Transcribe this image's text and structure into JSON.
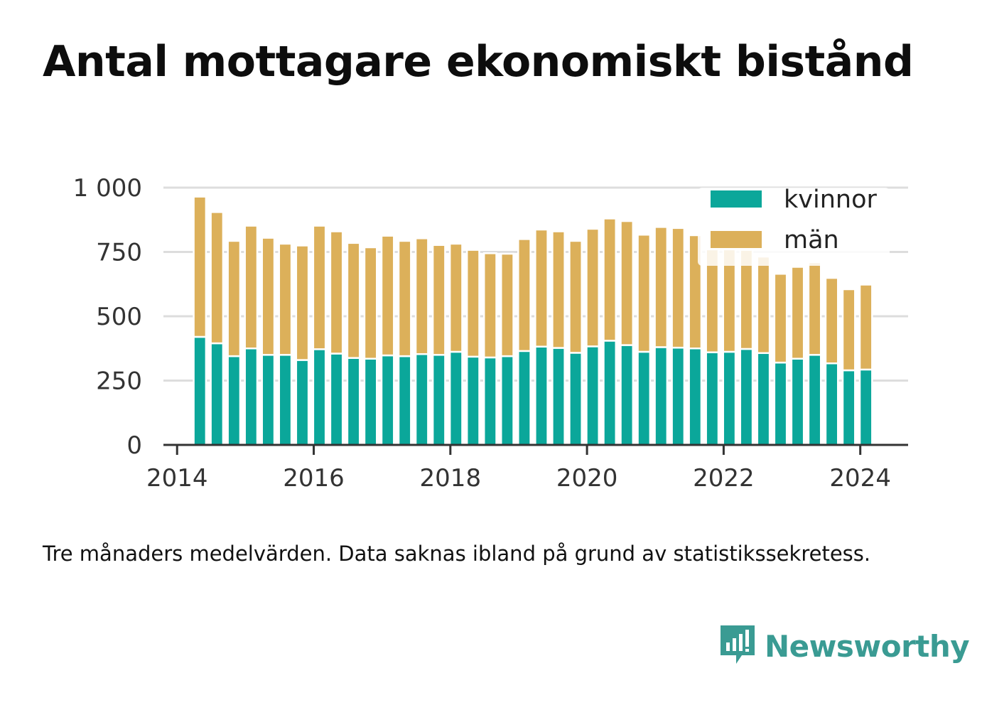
{
  "title": "Antal mottagare ekonomiskt bistånd",
  "note": "Tre månaders medelvärden. Data saknas ibland på grund av statistikssekretess.",
  "brand": {
    "name": "Newsworthy",
    "icon": "newsworthy-logo-icon"
  },
  "colors": {
    "kvinnor": "#0ba79a",
    "man": "#dcb05a",
    "grid": "#dddddd",
    "axis": "#333333"
  },
  "chart_data": {
    "type": "bar",
    "stacked": true,
    "x": [
      2014.333,
      2014.583,
      2014.833,
      2015.083,
      2015.333,
      2015.583,
      2015.833,
      2016.083,
      2016.333,
      2016.583,
      2016.833,
      2017.083,
      2017.333,
      2017.583,
      2017.833,
      2018.083,
      2018.333,
      2018.583,
      2018.833,
      2019.083,
      2019.333,
      2019.583,
      2019.833,
      2020.083,
      2020.333,
      2020.583,
      2020.833,
      2021.083,
      2021.333,
      2021.583,
      2021.833,
      2022.083,
      2022.333,
      2022.583,
      2022.833,
      2023.083,
      2023.333,
      2023.583,
      2023.833,
      2024.083
    ],
    "series": [
      {
        "name": "kvinnor",
        "values": [
          420,
          395,
          345,
          375,
          350,
          350,
          330,
          372,
          355,
          338,
          335,
          348,
          345,
          353,
          350,
          362,
          343,
          340,
          345,
          365,
          382,
          377,
          358,
          383,
          405,
          388,
          362,
          380,
          378,
          375,
          360,
          362,
          373,
          357,
          320,
          335,
          350,
          317,
          290,
          293
        ]
      },
      {
        "name": "män",
        "values": [
          545,
          510,
          448,
          477,
          455,
          432,
          445,
          480,
          475,
          447,
          433,
          465,
          448,
          450,
          427,
          420,
          415,
          405,
          398,
          435,
          455,
          453,
          435,
          457,
          475,
          482,
          455,
          467,
          465,
          440,
          400,
          398,
          385,
          375,
          345,
          357,
          360,
          332,
          315,
          330
        ]
      }
    ],
    "ylim": [
      0,
      1000
    ],
    "xlim": [
      2013.8,
      2024.7
    ],
    "yticks": [
      0,
      250,
      500,
      750,
      1000
    ],
    "ytick_labels": [
      "0",
      "250",
      "500",
      "750",
      "1 000"
    ],
    "xticks": [
      2014,
      2016,
      2018,
      2020,
      2022,
      2024
    ],
    "xtick_labels": [
      "2014",
      "2016",
      "2018",
      "2020",
      "2022",
      "2024"
    ],
    "legend": {
      "position": "top-right",
      "entries": [
        "kvinnor",
        "män"
      ]
    },
    "grid": "horizontal"
  }
}
